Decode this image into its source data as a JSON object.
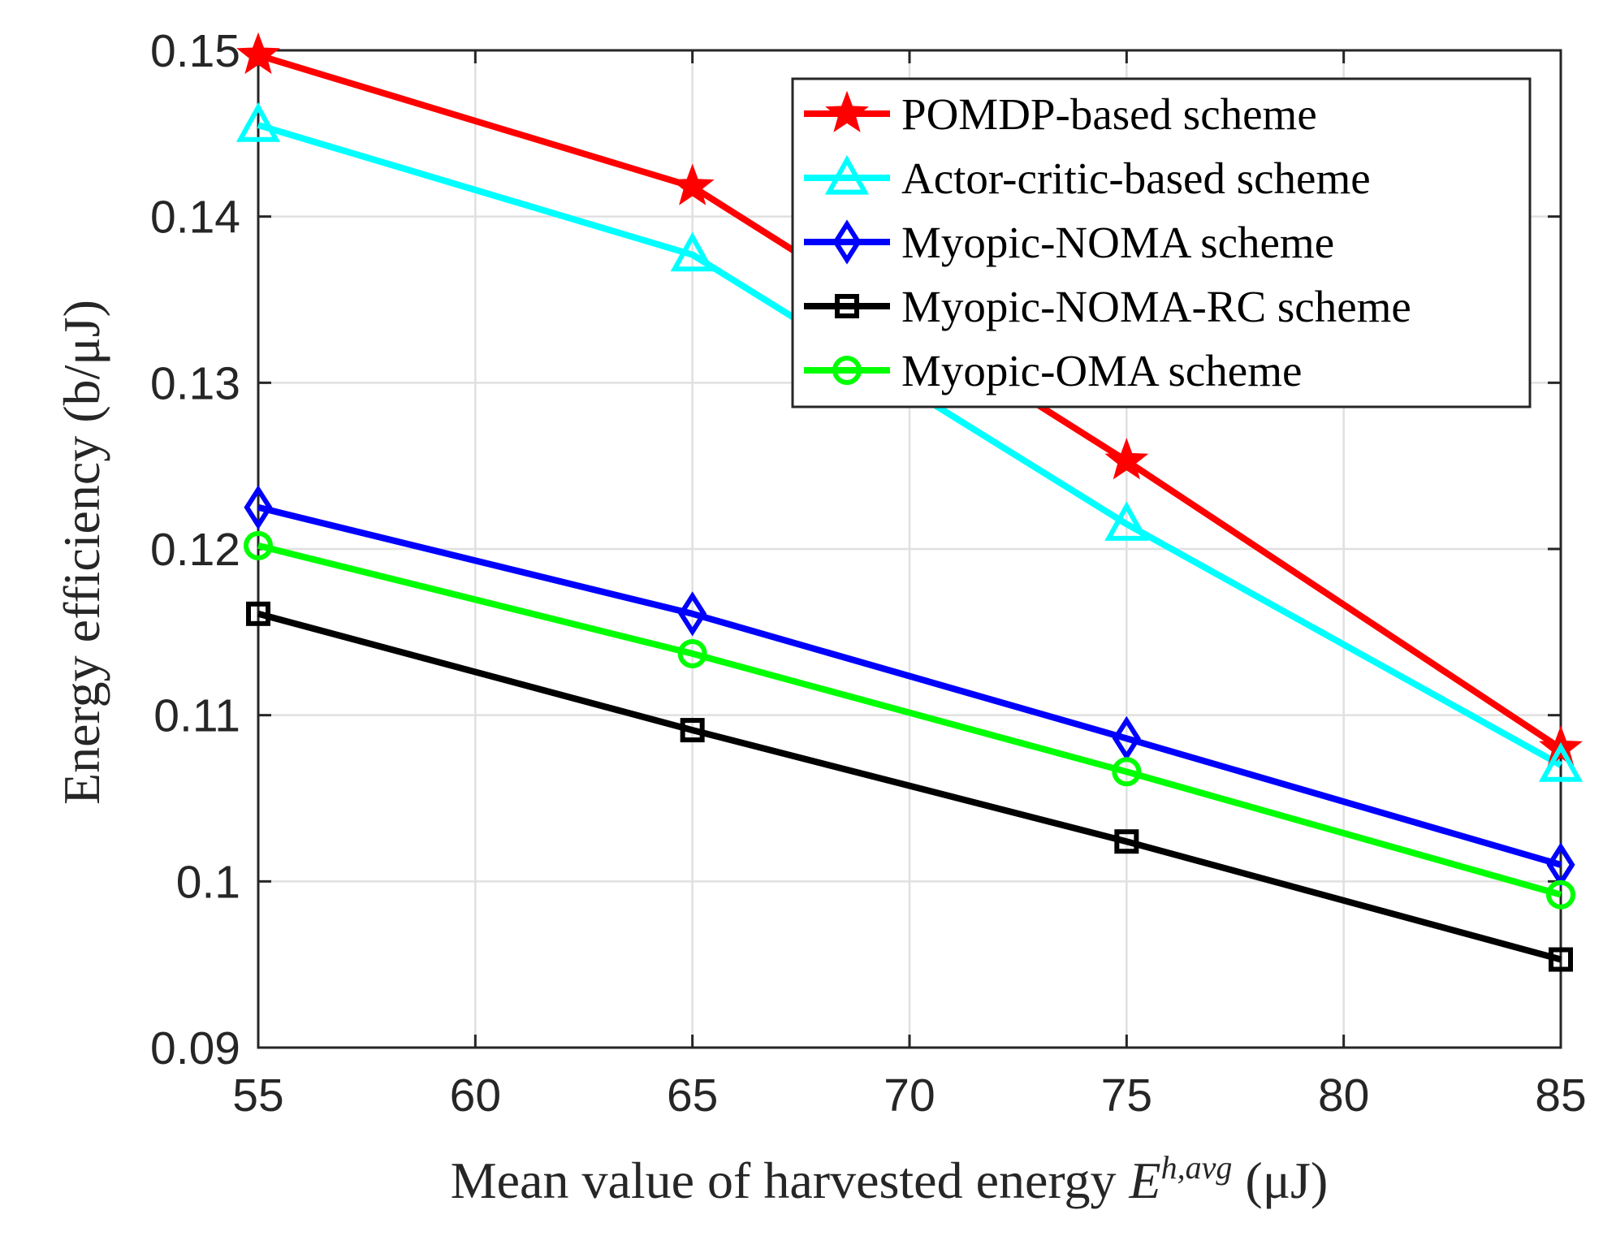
{
  "chart_data": {
    "type": "line",
    "title": "",
    "xlabel": "Mean value of harvested energy E^{h,avg} (μJ)",
    "xlabel_parts": {
      "main": "Mean value of harvested energy ",
      "symbol": "E",
      "superscript": "h,avg",
      "unit": " (μJ)"
    },
    "ylabel": "Energy efficiency (b/μJ)",
    "xlim": [
      55,
      85
    ],
    "ylim": [
      0.09,
      0.15
    ],
    "xticks": [
      55,
      60,
      65,
      70,
      75,
      80,
      85
    ],
    "xtick_labels": [
      "55",
      "60",
      "65",
      "70",
      "75",
      "80",
      "85"
    ],
    "yticks": [
      0.09,
      0.1,
      0.11,
      0.12,
      0.13,
      0.14,
      0.15
    ],
    "ytick_labels": [
      "0.09",
      "0.1",
      "0.11",
      "0.12",
      "0.13",
      "0.14",
      "0.15"
    ],
    "grid": true,
    "legend_position": "top-right",
    "x": [
      55,
      65,
      75,
      85
    ],
    "series": [
      {
        "name": "POMDP-based scheme",
        "color": "#ff0000",
        "marker": "star",
        "values": [
          0.1497,
          0.1418,
          0.1253,
          0.108
        ]
      },
      {
        "name": "Actor-critic-based scheme",
        "color": "#00ffff",
        "marker": "triangle",
        "values": [
          0.1455,
          0.1377,
          0.1215,
          0.107
        ]
      },
      {
        "name": "Myopic-NOMA scheme",
        "color": "#0000ff",
        "marker": "diamond",
        "values": [
          0.1225,
          0.1161,
          0.1086,
          0.101
        ]
      },
      {
        "name": "Myopic-NOMA-RC scheme",
        "color": "#000000",
        "marker": "square",
        "values": [
          0.1161,
          0.1091,
          0.1024,
          0.0953
        ]
      },
      {
        "name": "Myopic-OMA scheme",
        "color": "#00ff00",
        "marker": "circle",
        "values": [
          0.1202,
          0.1137,
          0.1066,
          0.0992
        ]
      }
    ]
  }
}
